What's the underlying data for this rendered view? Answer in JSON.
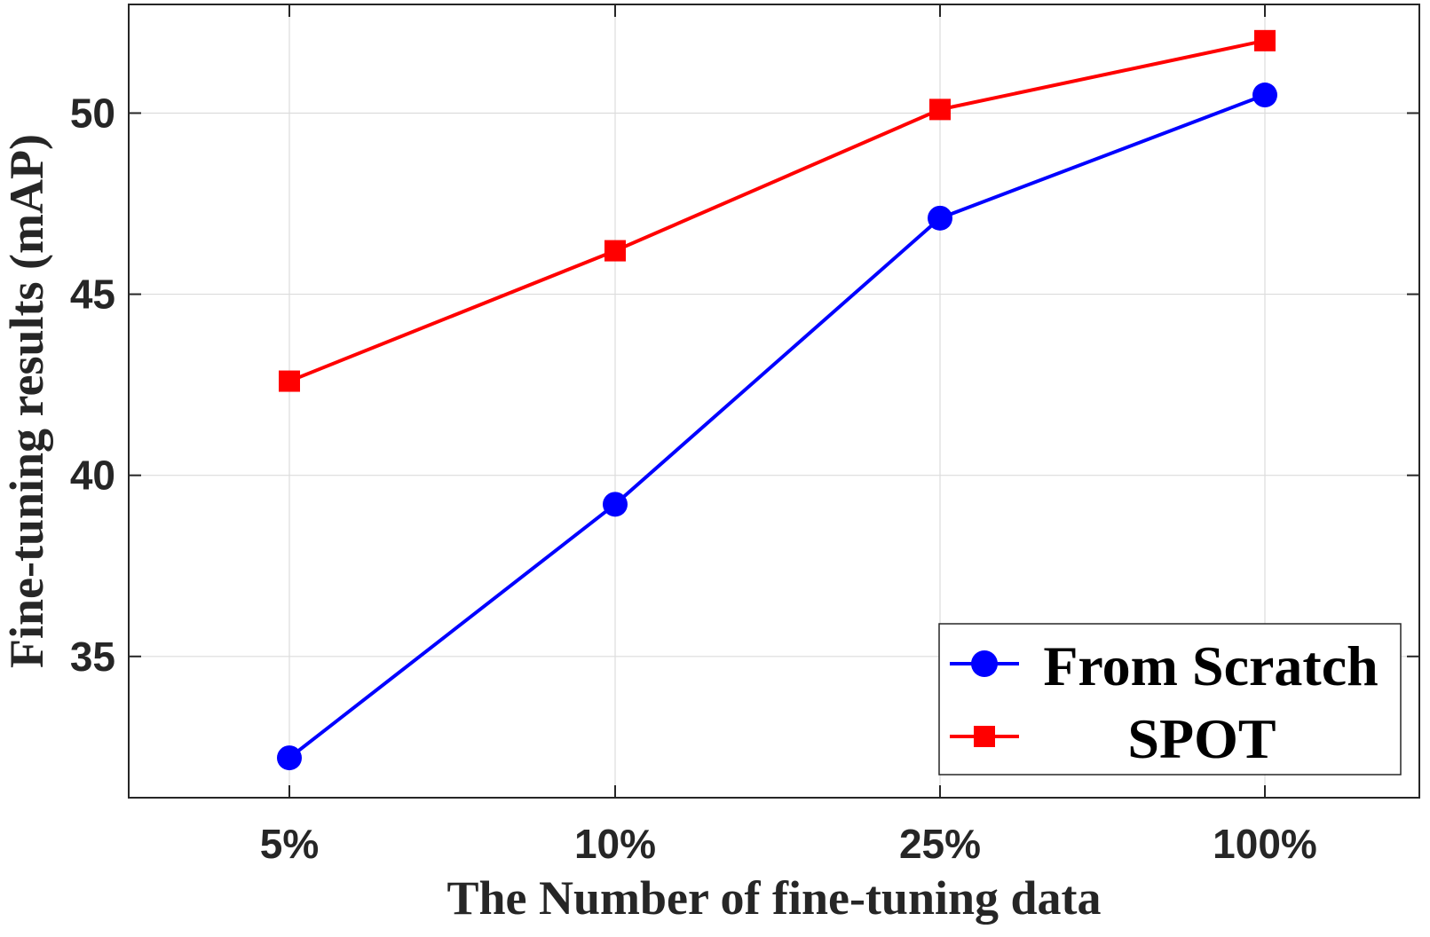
{
  "chart_data": {
    "type": "line",
    "categories": [
      "5%",
      "10%",
      "25%",
      "100%"
    ],
    "series": [
      {
        "name": "From Scratch",
        "values": [
          32.2,
          39.2,
          47.1,
          50.5
        ],
        "color": "#0000ff",
        "marker": "circle"
      },
      {
        "name": "SPOT",
        "values": [
          42.6,
          46.2,
          50.1,
          52.0
        ],
        "color": "#ff0000",
        "marker": "square"
      }
    ],
    "xlabel": "The Number of fine-tuning data",
    "ylabel": "Fine-tuning results (mAP)",
    "ylim": [
      31.1,
      53.0
    ],
    "yticks": [
      35,
      40,
      45,
      50
    ],
    "grid": true,
    "legend_position": "bottom-right"
  }
}
